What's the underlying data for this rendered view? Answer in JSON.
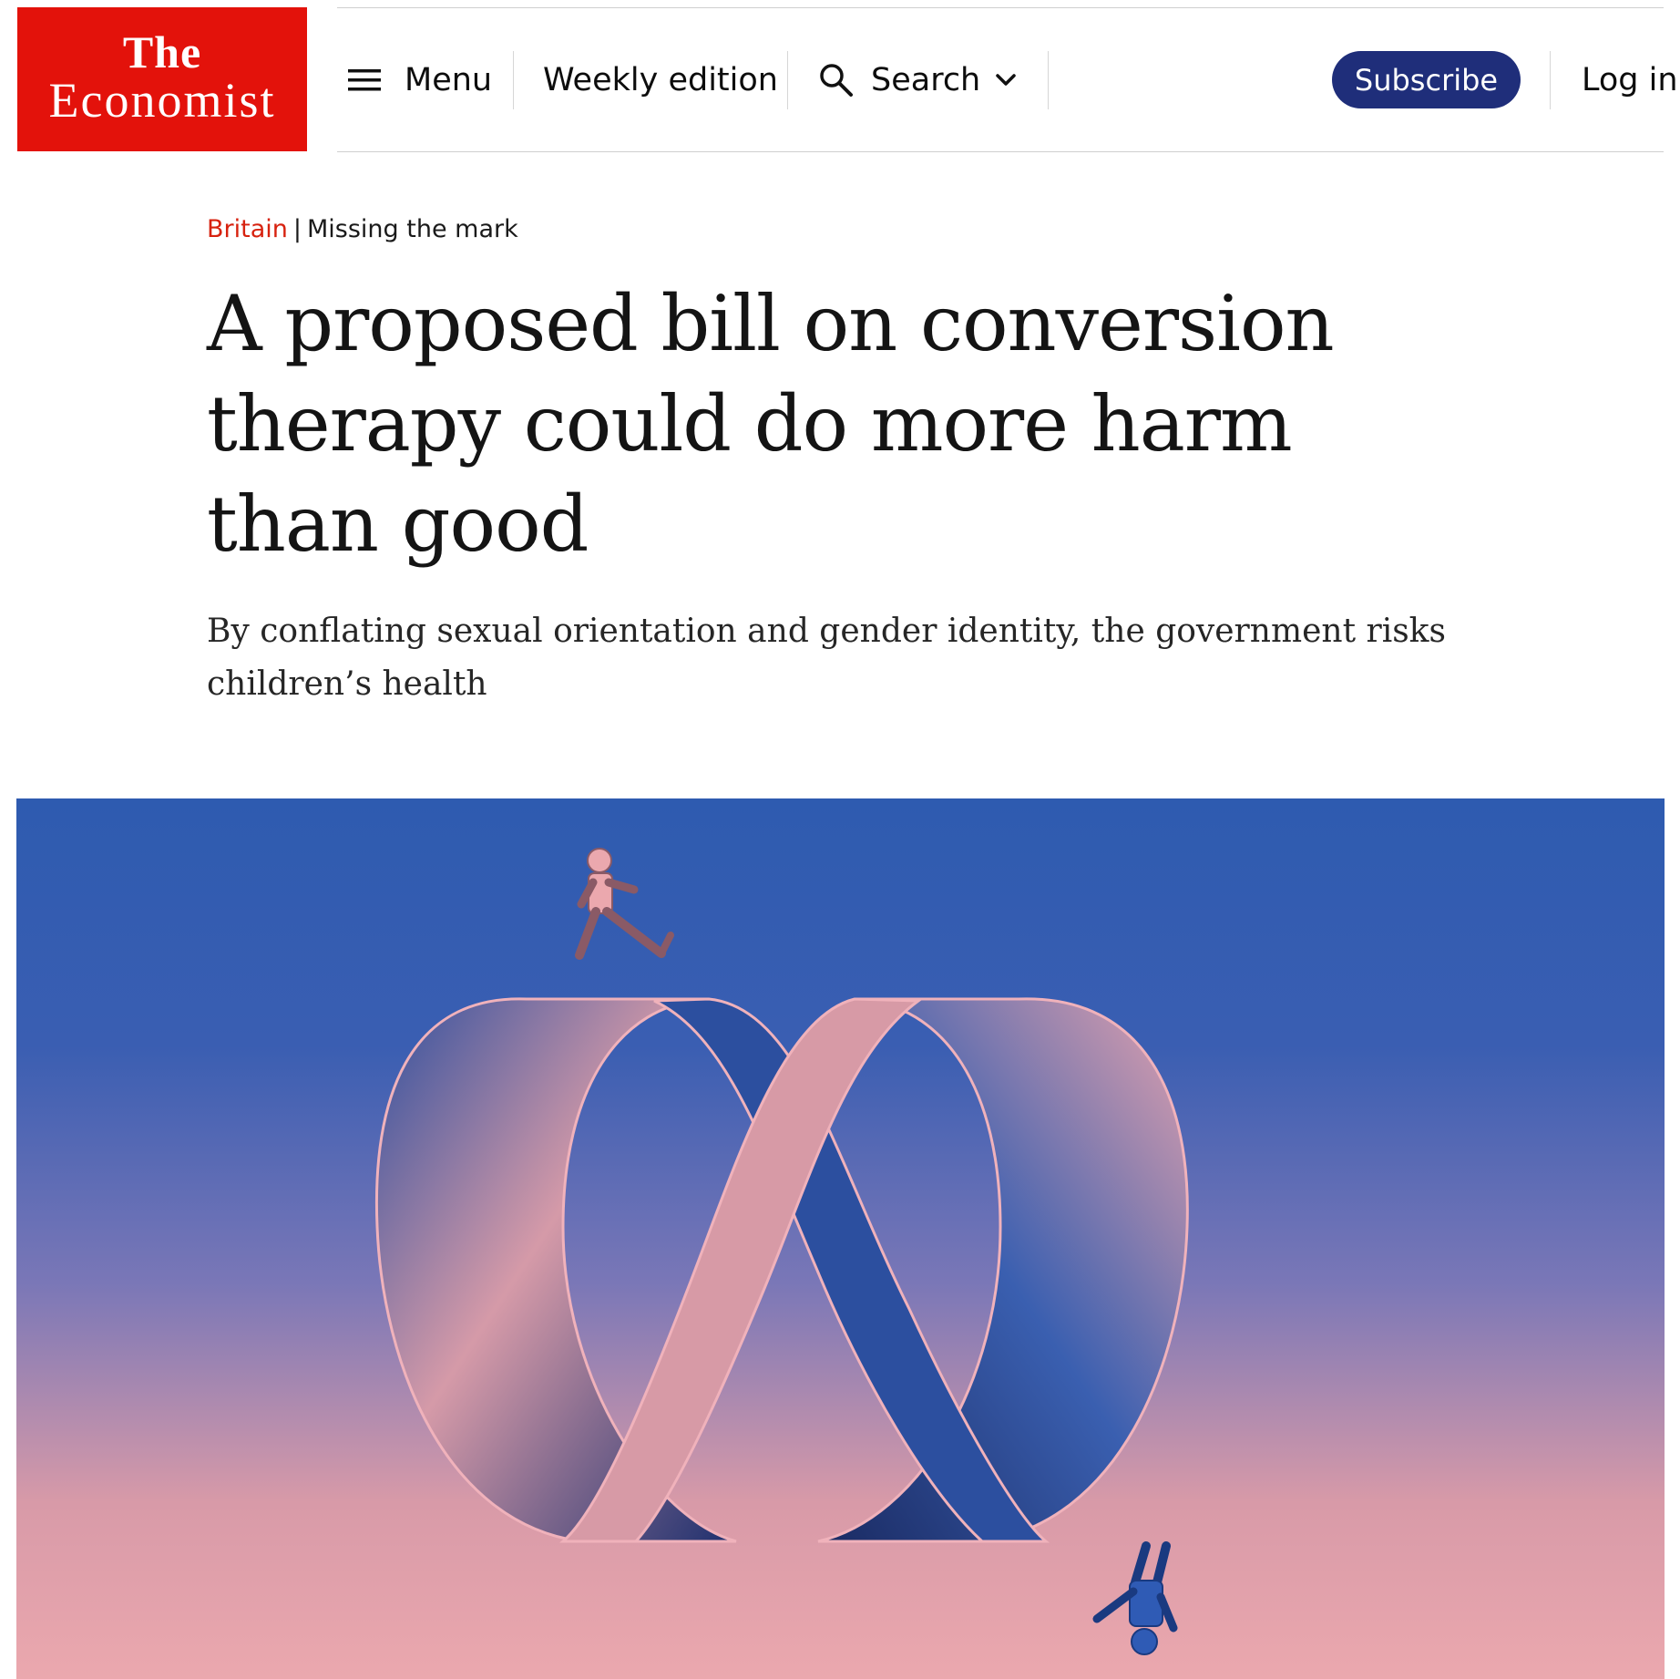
{
  "header": {
    "logo": {
      "line1": "The",
      "line2": "Economist"
    },
    "menu_label": "Menu",
    "weekly_label": "Weekly edition",
    "search_label": "Search",
    "subscribe_label": "Subscribe",
    "login_label": "Log in",
    "icons": [
      "hamburger-icon",
      "search-icon",
      "chevron-down-icon"
    ]
  },
  "article": {
    "section": "Britain",
    "separator": "|",
    "rubric": "Missing the mark",
    "headline": "A proposed bill on conversion therapy could do more harm than good",
    "subheadline": "By conflating sexual orientation and gender identity, the government risks children’s health"
  },
  "colors": {
    "brand_red": "#e3120b",
    "subscribe_blue": "#1f2e7a",
    "section_red": "#d7220f",
    "hero_blue": "#2e5bb0",
    "hero_pink": "#eba8ae"
  }
}
